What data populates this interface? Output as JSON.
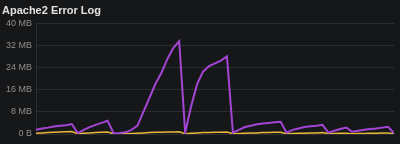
{
  "chart_data": {
    "type": "line",
    "title": "Apache2 Error Log",
    "categories": [
      null,
      null,
      null,
      null,
      null,
      null,
      null,
      null,
      null,
      null,
      null,
      null,
      null,
      null,
      null,
      null,
      null,
      null,
      null,
      null,
      null,
      null,
      null,
      null,
      null,
      null,
      null,
      null,
      null,
      null,
      null,
      null,
      null,
      null,
      null,
      null,
      null,
      null,
      null,
      null,
      null,
      null,
      null,
      null,
      null,
      null,
      null,
      null,
      null,
      null,
      null,
      null,
      null,
      null,
      null,
      null,
      null,
      null,
      null,
      null,
      null
    ],
    "series": [
      {
        "color": "#a445d6",
        "values": [
          1.5,
          2,
          2.3,
          2.7,
          3,
          3.2,
          3.6,
          0.3,
          1.5,
          2.5,
          3.3,
          4,
          4.8,
          0.3,
          0.4,
          0.6,
          1.5,
          3,
          8,
          13,
          18,
          22,
          27,
          31,
          33.5,
          0.5,
          10,
          18,
          22.5,
          24.5,
          25.5,
          26.5,
          28,
          0.5,
          1.5,
          2.5,
          3,
          3.5,
          3.8,
          4,
          4.2,
          4.4,
          0.5,
          1.5,
          2,
          2.5,
          2.8,
          3,
          3.3,
          0.5,
          1.2,
          1.8,
          2.3,
          0.8,
          1.2,
          1.5,
          1.8,
          2,
          2.3,
          2.6,
          0.3
        ]
      },
      {
        "color": "#eab839",
        "values": [
          0.3,
          0.4,
          0.5,
          0.6,
          0.7,
          0.8,
          0.9,
          0.1,
          0.3,
          0.4,
          0.5,
          0.6,
          0.7,
          0.1,
          0.1,
          0.1,
          0.2,
          0.3,
          0.4,
          0.5,
          0.6,
          0.6,
          0.7,
          0.7,
          0.8,
          0.1,
          0.3,
          0.4,
          0.5,
          0.5,
          0.6,
          0.6,
          0.7,
          0.1,
          0.2,
          0.3,
          0.4,
          0.4,
          0.5,
          0.5,
          0.6,
          0.6,
          0.1,
          0.2,
          0.3,
          0.3,
          0.4,
          0.4,
          0.5,
          0.1,
          0.2,
          0.3,
          0.3,
          0.1,
          0.2,
          0.2,
          0.3,
          0.3,
          0.4,
          0.4,
          0.1
        ]
      }
    ],
    "ylim": [
      0,
      40
    ],
    "yticks": [
      {
        "value": 0,
        "label": "0 B"
      },
      {
        "value": 8,
        "label": "8 MB"
      },
      {
        "value": 16,
        "label": "16 MB"
      },
      {
        "value": 24,
        "label": "24 MB"
      },
      {
        "value": 32,
        "label": "32 MB"
      },
      {
        "value": 40,
        "label": "40 MB"
      }
    ],
    "grid": true,
    "tick_labels": "y",
    "marker": "none"
  }
}
